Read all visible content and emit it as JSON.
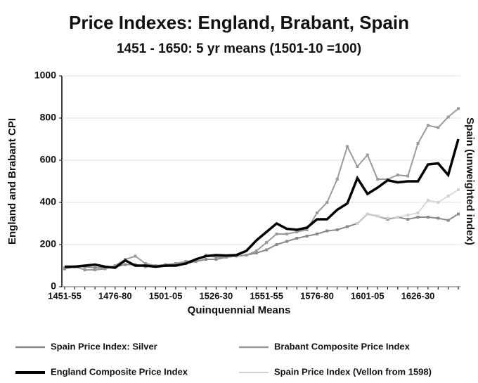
{
  "chart_data": {
    "type": "line",
    "title": "Price Indexes: England, Brabant, Spain",
    "subtitle": "1451 - 1650: 5 yr means (1501-10 =100)",
    "x_label": "Quinquennial Means",
    "y_label": "England and Brabant CPI",
    "y2_label": "Spain (unweighted index)",
    "categories": [
      "1451-55",
      null,
      null,
      null,
      null,
      "1476-80",
      null,
      null,
      null,
      null,
      "1501-05",
      null,
      null,
      null,
      null,
      "1526-30",
      null,
      null,
      null,
      null,
      "1551-55",
      null,
      null,
      null,
      null,
      "1576-80",
      null,
      null,
      null,
      null,
      "1601-05",
      null,
      null,
      null,
      null,
      "1626-30",
      null,
      null,
      null,
      null
    ],
    "ylim": [
      0,
      1000
    ],
    "yticks": [
      0,
      200,
      400,
      600,
      800,
      1000
    ],
    "grid": true,
    "series": [
      {
        "name": "Spain Price Index: Silver",
        "color": "#8a8a8a",
        "values": [
          85,
          95,
          95,
          90,
          90,
          95,
          105,
          105,
          95,
          100,
          100,
          105,
          110,
          120,
          130,
          130,
          140,
          145,
          150,
          160,
          175,
          200,
          215,
          230,
          240,
          250,
          265,
          270,
          285,
          300,
          345,
          335,
          320,
          330,
          320,
          330,
          330,
          325,
          315,
          345
        ]
      },
      {
        "name": "Brabant Composite Price Index",
        "color": "#9a9a9a",
        "values": [
          90,
          95,
          80,
          80,
          85,
          100,
          130,
          145,
          110,
          100,
          105,
          110,
          120,
          125,
          150,
          140,
          140,
          145,
          150,
          170,
          210,
          250,
          250,
          260,
          270,
          350,
          400,
          510,
          665,
          570,
          625,
          510,
          510,
          530,
          525,
          680,
          765,
          755,
          805,
          845
        ]
      },
      {
        "name": "England Composite Price Index",
        "color": "#000000",
        "values": [
          95,
          95,
          100,
          105,
          95,
          90,
          125,
          100,
          100,
          95,
          100,
          100,
          110,
          130,
          145,
          150,
          148,
          150,
          170,
          220,
          260,
          300,
          275,
          270,
          280,
          320,
          320,
          365,
          395,
          515,
          440,
          470,
          505,
          495,
          500,
          500,
          580,
          585,
          530,
          700
        ]
      },
      {
        "name": "Spain Price Index (Vellon from 1598)",
        "color": "#d0d0d0",
        "values": [
          null,
          null,
          null,
          null,
          null,
          null,
          null,
          null,
          null,
          null,
          null,
          null,
          null,
          null,
          null,
          null,
          null,
          null,
          null,
          null,
          null,
          null,
          null,
          null,
          null,
          null,
          null,
          null,
          null,
          300,
          345,
          335,
          325,
          330,
          340,
          350,
          410,
          400,
          430,
          460
        ]
      }
    ]
  }
}
